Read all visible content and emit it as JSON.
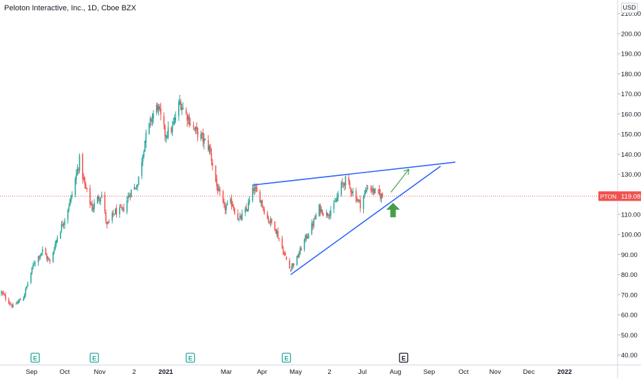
{
  "header": {
    "title": "Peloton Interactive, Inc., 1D, Cboe BZX",
    "currency": "USD"
  },
  "price_tag": {
    "symbol": "PTON",
    "value": "119.08",
    "price": 119.08,
    "color": "#ef5350"
  },
  "colors": {
    "up": "#26a69a",
    "down": "#ef5350",
    "trendline": "#2962ff",
    "arrow": "#43a047",
    "axis_text": "#131722",
    "earnings_badge": "#26a69a",
    "future_earnings_badge": "#131722"
  },
  "annotations": {
    "arrow_icon": "arrow-up-icon",
    "earnings_icon": "earnings-e-icon",
    "earnings_label": "E"
  },
  "chart_data": {
    "type": "candlestick",
    "title": "Peloton Interactive, Inc., 1D, Cboe BZX",
    "ylabel": "USD",
    "ylim": [
      38,
      218
    ],
    "y_ticks": [
      40,
      50,
      60,
      70,
      80,
      90,
      100,
      110,
      120,
      130,
      140,
      150,
      160,
      170,
      180,
      190,
      200,
      210
    ],
    "x_ticks": [
      "Sep",
      "Oct",
      "Nov",
      "2",
      "2021",
      "Mar",
      "Apr",
      "May",
      "2",
      "Jul",
      "Aug",
      "Sep",
      "Oct",
      "Nov",
      "Dec",
      "2022"
    ],
    "grid": false,
    "price_path": [
      [
        "2020-08-10",
        71
      ],
      [
        "2020-08-21",
        64
      ],
      [
        "2020-08-31",
        69
      ],
      [
        "2020-09-03",
        74
      ],
      [
        "2020-09-10",
        86
      ],
      [
        "2020-09-18",
        92
      ],
      [
        "2020-09-25",
        86
      ],
      [
        "2020-10-02",
        99
      ],
      [
        "2020-10-09",
        108
      ],
      [
        "2020-10-16",
        120
      ],
      [
        "2020-10-23",
        137
      ],
      [
        "2020-10-28",
        124
      ],
      [
        "2020-11-04",
        113
      ],
      [
        "2020-11-09",
        118
      ],
      [
        "2020-11-13",
        120
      ],
      [
        "2020-11-18",
        104
      ],
      [
        "2020-11-25",
        111
      ],
      [
        "2020-12-03",
        112
      ],
      [
        "2020-12-10",
        121
      ],
      [
        "2020-12-17",
        125
      ],
      [
        "2020-12-24",
        147
      ],
      [
        "2020-12-31",
        159
      ],
      [
        "2021-01-05",
        164
      ],
      [
        "2021-01-12",
        150
      ],
      [
        "2021-01-19",
        153
      ],
      [
        "2021-01-26",
        166
      ],
      [
        "2021-02-01",
        160
      ],
      [
        "2021-02-09",
        152
      ],
      [
        "2021-02-16",
        148
      ],
      [
        "2021-02-23",
        143
      ],
      [
        "2021-03-02",
        124
      ],
      [
        "2021-03-09",
        113
      ],
      [
        "2021-03-16",
        116
      ],
      [
        "2021-03-23",
        107
      ],
      [
        "2021-03-30",
        112
      ],
      [
        "2021-04-06",
        123
      ],
      [
        "2021-04-12",
        118
      ],
      [
        "2021-04-19",
        108
      ],
      [
        "2021-04-26",
        104
      ],
      [
        "2021-05-03",
        93
      ],
      [
        "2021-05-10",
        83
      ],
      [
        "2021-05-17",
        88
      ],
      [
        "2021-05-24",
        97
      ],
      [
        "2021-05-31",
        104
      ],
      [
        "2021-06-07",
        113
      ],
      [
        "2021-06-14",
        110
      ],
      [
        "2021-06-21",
        114
      ],
      [
        "2021-06-28",
        124
      ],
      [
        "2021-07-02",
        127
      ],
      [
        "2021-07-09",
        121
      ],
      [
        "2021-07-16",
        115
      ],
      [
        "2021-07-23",
        124
      ],
      [
        "2021-07-30",
        121
      ],
      [
        "2021-08-06",
        119
      ]
    ],
    "candles": [],
    "trendlines": [
      {
        "name": "resistance",
        "start": [
          "2021-04-05",
          124.6
        ],
        "end": [
          "2021-10-14",
          136
        ]
      },
      {
        "name": "support",
        "start": [
          "2021-05-11",
          80
        ],
        "end": [
          "2021-09-30",
          134
        ]
      }
    ],
    "projection_arrow": {
      "start": [
        "2021-08-14",
        121
      ],
      "end": [
        "2021-08-31",
        132.5
      ]
    },
    "up_arrow_marker": {
      "date": "2021-08-16",
      "price": 112
    },
    "earnings": [
      {
        "date": "2020-09-11",
        "reported": true
      },
      {
        "date": "2020-11-06",
        "reported": true
      },
      {
        "date": "2021-02-05",
        "reported": true
      },
      {
        "date": "2021-05-07",
        "reported": true
      },
      {
        "date": "2021-08-26",
        "reported": false
      }
    ]
  }
}
